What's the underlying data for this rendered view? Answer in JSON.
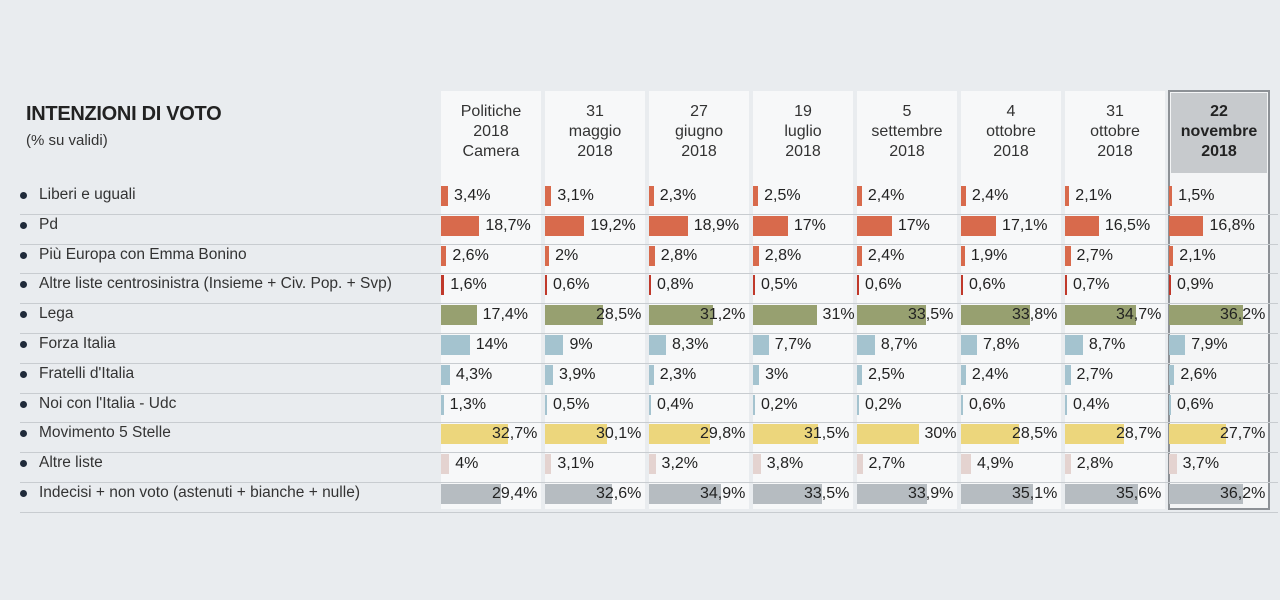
{
  "chart_data": {
    "type": "table",
    "title": "INTENZIONI DI VOTO",
    "subtitle": "(% su validi)",
    "columns": [
      {
        "lines": [
          "Politiche",
          "2018",
          "Camera"
        ],
        "highlight": false
      },
      {
        "lines": [
          "31",
          "maggio",
          "2018"
        ],
        "highlight": false
      },
      {
        "lines": [
          "27",
          "giugno",
          "2018"
        ],
        "highlight": false
      },
      {
        "lines": [
          "19",
          "luglio",
          "2018"
        ],
        "highlight": false
      },
      {
        "lines": [
          "5",
          "settembre",
          "2018"
        ],
        "highlight": false
      },
      {
        "lines": [
          "4",
          "ottobre",
          "2018"
        ],
        "highlight": false
      },
      {
        "lines": [
          "31",
          "ottobre",
          "2018"
        ],
        "highlight": false
      },
      {
        "lines": [
          "22",
          "novembre",
          "2018"
        ],
        "highlight": true
      }
    ],
    "series": [
      {
        "name": "Liberi e uguali",
        "color": "#d86a4c",
        "values": [
          3.4,
          3.1,
          2.3,
          2.5,
          2.4,
          2.4,
          2.1,
          1.5
        ],
        "labels": [
          "3,4%",
          "3,1%",
          "2,3%",
          "2,5%",
          "2,4%",
          "2,4%",
          "2,1%",
          "1,5%"
        ]
      },
      {
        "name": "Pd",
        "color": "#d86a4c",
        "values": [
          18.7,
          19.2,
          18.9,
          17,
          17,
          17.1,
          16.5,
          16.8
        ],
        "labels": [
          "18,7%",
          "19,2%",
          "18,9%",
          "17%",
          "17%",
          "17,1%",
          "16,5%",
          "16,8%"
        ]
      },
      {
        "name": "Più Europa con Emma Bonino",
        "color": "#d86a4c",
        "values": [
          2.6,
          2,
          2.8,
          2.8,
          2.4,
          1.9,
          2.7,
          2.1
        ],
        "labels": [
          "2,6%",
          "2%",
          "2,8%",
          "2,8%",
          "2,4%",
          "1,9%",
          "2,7%",
          "2,1%"
        ]
      },
      {
        "name": "Altre liste centrosinistra  (Insieme + Civ. Pop. + Svp)",
        "color": "#c0392b",
        "values": [
          1.6,
          0.6,
          0.8,
          0.5,
          0.6,
          0.6,
          0.7,
          0.9
        ],
        "labels": [
          "1,6%",
          "0,6%",
          "0,8%",
          "0,5%",
          "0,6%",
          "0,6%",
          "0,7%",
          "0,9%"
        ]
      },
      {
        "name": "Lega",
        "color": "#97a070",
        "values": [
          17.4,
          28.5,
          31.2,
          31,
          33.5,
          33.8,
          34.7,
          36.2
        ],
        "labels": [
          "17,4%",
          "28,5%",
          "31,2%",
          "31%",
          "33,5%",
          "33,8%",
          "34,7%",
          "36,2%"
        ]
      },
      {
        "name": "Forza Italia",
        "color": "#a4c3cf",
        "values": [
          14,
          9,
          8.3,
          7.7,
          8.7,
          7.8,
          8.7,
          7.9
        ],
        "labels": [
          "14%",
          "9%",
          "8,3%",
          "7,7%",
          "8,7%",
          "7,8%",
          "8,7%",
          "7,9%"
        ]
      },
      {
        "name": "Fratelli d'Italia",
        "color": "#a4c3cf",
        "values": [
          4.3,
          3.9,
          2.3,
          3,
          2.5,
          2.4,
          2.7,
          2.6
        ],
        "labels": [
          "4,3%",
          "3,9%",
          "2,3%",
          "3%",
          "2,5%",
          "2,4%",
          "2,7%",
          "2,6%"
        ]
      },
      {
        "name": "Noi con l'Italia - Udc",
        "color": "#a4c3cf",
        "values": [
          1.3,
          0.5,
          0.4,
          0.2,
          0.2,
          0.6,
          0.4,
          0.6
        ],
        "labels": [
          "1,3%",
          "0,5%",
          "0,4%",
          "0,2%",
          "0,2%",
          "0,6%",
          "0,4%",
          "0,6%"
        ]
      },
      {
        "name": "Movimento 5 Stelle",
        "color": "#ecd67c",
        "values": [
          32.7,
          30.1,
          29.8,
          31.5,
          30,
          28.5,
          28.7,
          27.7
        ],
        "labels": [
          "32,7%",
          "30,1%",
          "29,8%",
          "31,5%",
          "30%",
          "28,5%",
          "28,7%",
          "27,7%"
        ]
      },
      {
        "name": "Altre liste",
        "color": "#e4d3d0",
        "values": [
          4,
          3.1,
          3.2,
          3.8,
          2.7,
          4.9,
          2.8,
          3.7
        ],
        "labels": [
          "4%",
          "3,1%",
          "3,2%",
          "3,8%",
          "2,7%",
          "4,9%",
          "2,8%",
          "3,7%"
        ]
      },
      {
        "name": "Indecisi + non voto (astenuti + bianche + nulle)",
        "color": "#b6bcc1",
        "values": [
          29.4,
          32.6,
          34.9,
          33.5,
          33.9,
          35.1,
          35.6,
          36.2
        ],
        "labels": [
          "29,4%",
          "32,6%",
          "34,9%",
          "33,5%",
          "33,9%",
          "35,1%",
          "35,6%",
          "36,2%"
        ]
      }
    ]
  }
}
